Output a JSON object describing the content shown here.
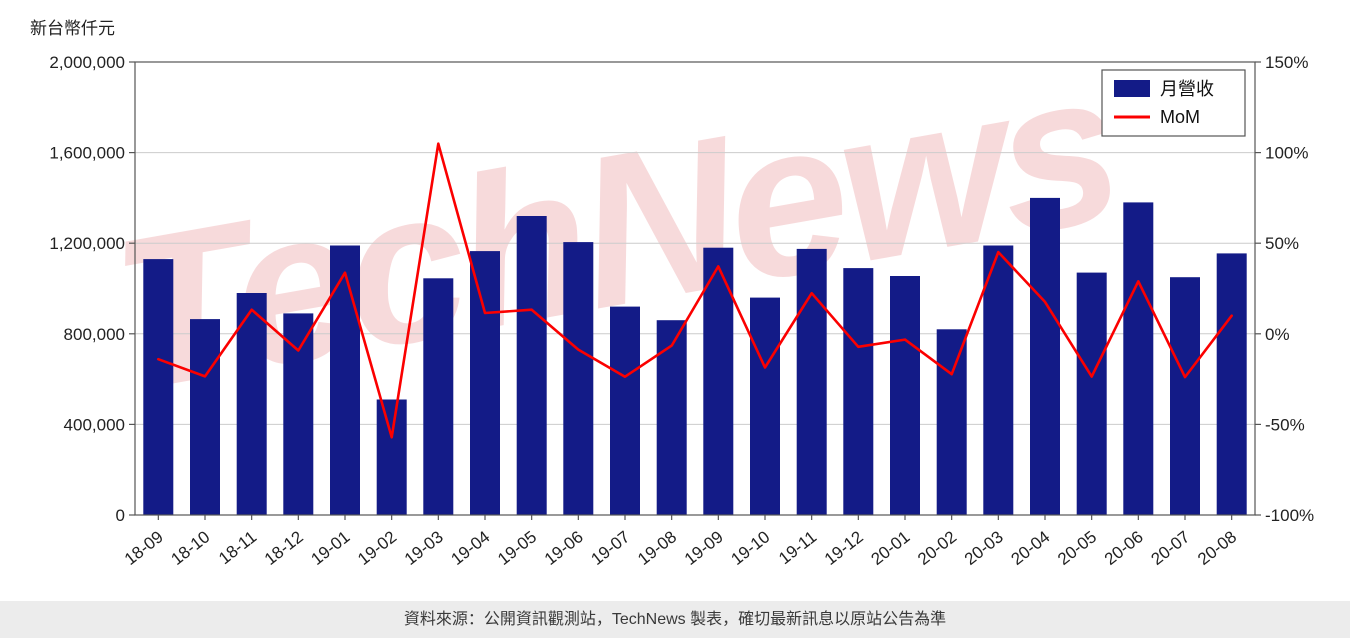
{
  "page": {
    "axis_title": "新台幣仟元",
    "watermark": "TechNews",
    "footer": "資料來源：公開資訊觀測站，TechNews 製表，確切最新訊息以原站公告為準"
  },
  "chart_data": {
    "type": "bar",
    "title": "",
    "categories": [
      "18-09",
      "18-10",
      "18-11",
      "18-12",
      "19-01",
      "19-02",
      "19-03",
      "19-04",
      "19-05",
      "19-06",
      "19-07",
      "19-08",
      "19-09",
      "19-10",
      "19-11",
      "19-12",
      "20-01",
      "20-02",
      "20-03",
      "20-04",
      "20-05",
      "20-06",
      "20-07",
      "20-08"
    ],
    "series": [
      {
        "name": "月營收",
        "type": "bar",
        "axis": "left",
        "color": "#131b87",
        "values": [
          1130000,
          865000,
          980000,
          890000,
          1190000,
          510000,
          1045000,
          1165000,
          1320000,
          1205000,
          920000,
          860000,
          1180000,
          960000,
          1175000,
          1090000,
          1055000,
          820000,
          1190000,
          1400000,
          1070000,
          1380000,
          1050000,
          1155000
        ]
      },
      {
        "name": "MoM",
        "type": "line",
        "axis": "right",
        "color": "#fb0000",
        "values": [
          -14,
          -23.5,
          13.3,
          -9.2,
          33.7,
          -57.1,
          104.9,
          11.5,
          13.3,
          -8.7,
          -23.7,
          -6.5,
          37.2,
          -18.6,
          22.4,
          -7.2,
          -3.2,
          -22.3,
          45.1,
          17.6,
          -23.6,
          29.0,
          -23.9,
          10.0
        ]
      }
    ],
    "left_axis": {
      "label": "新台幣仟元",
      "min": 0,
      "max": 2000000,
      "step": 400000
    },
    "right_axis": {
      "min": -100,
      "max": 150,
      "step": 50,
      "unit": "%"
    },
    "legend": {
      "position": "top-right",
      "entries": [
        "月營收",
        "MoM"
      ]
    },
    "grid": true,
    "colors": {
      "bar": "#131b87",
      "line": "#fb0000",
      "gridline": "#cccccc",
      "plot_border": "#555555",
      "watermark": "#f2bdbf",
      "footer_bg": "#ececec"
    }
  }
}
